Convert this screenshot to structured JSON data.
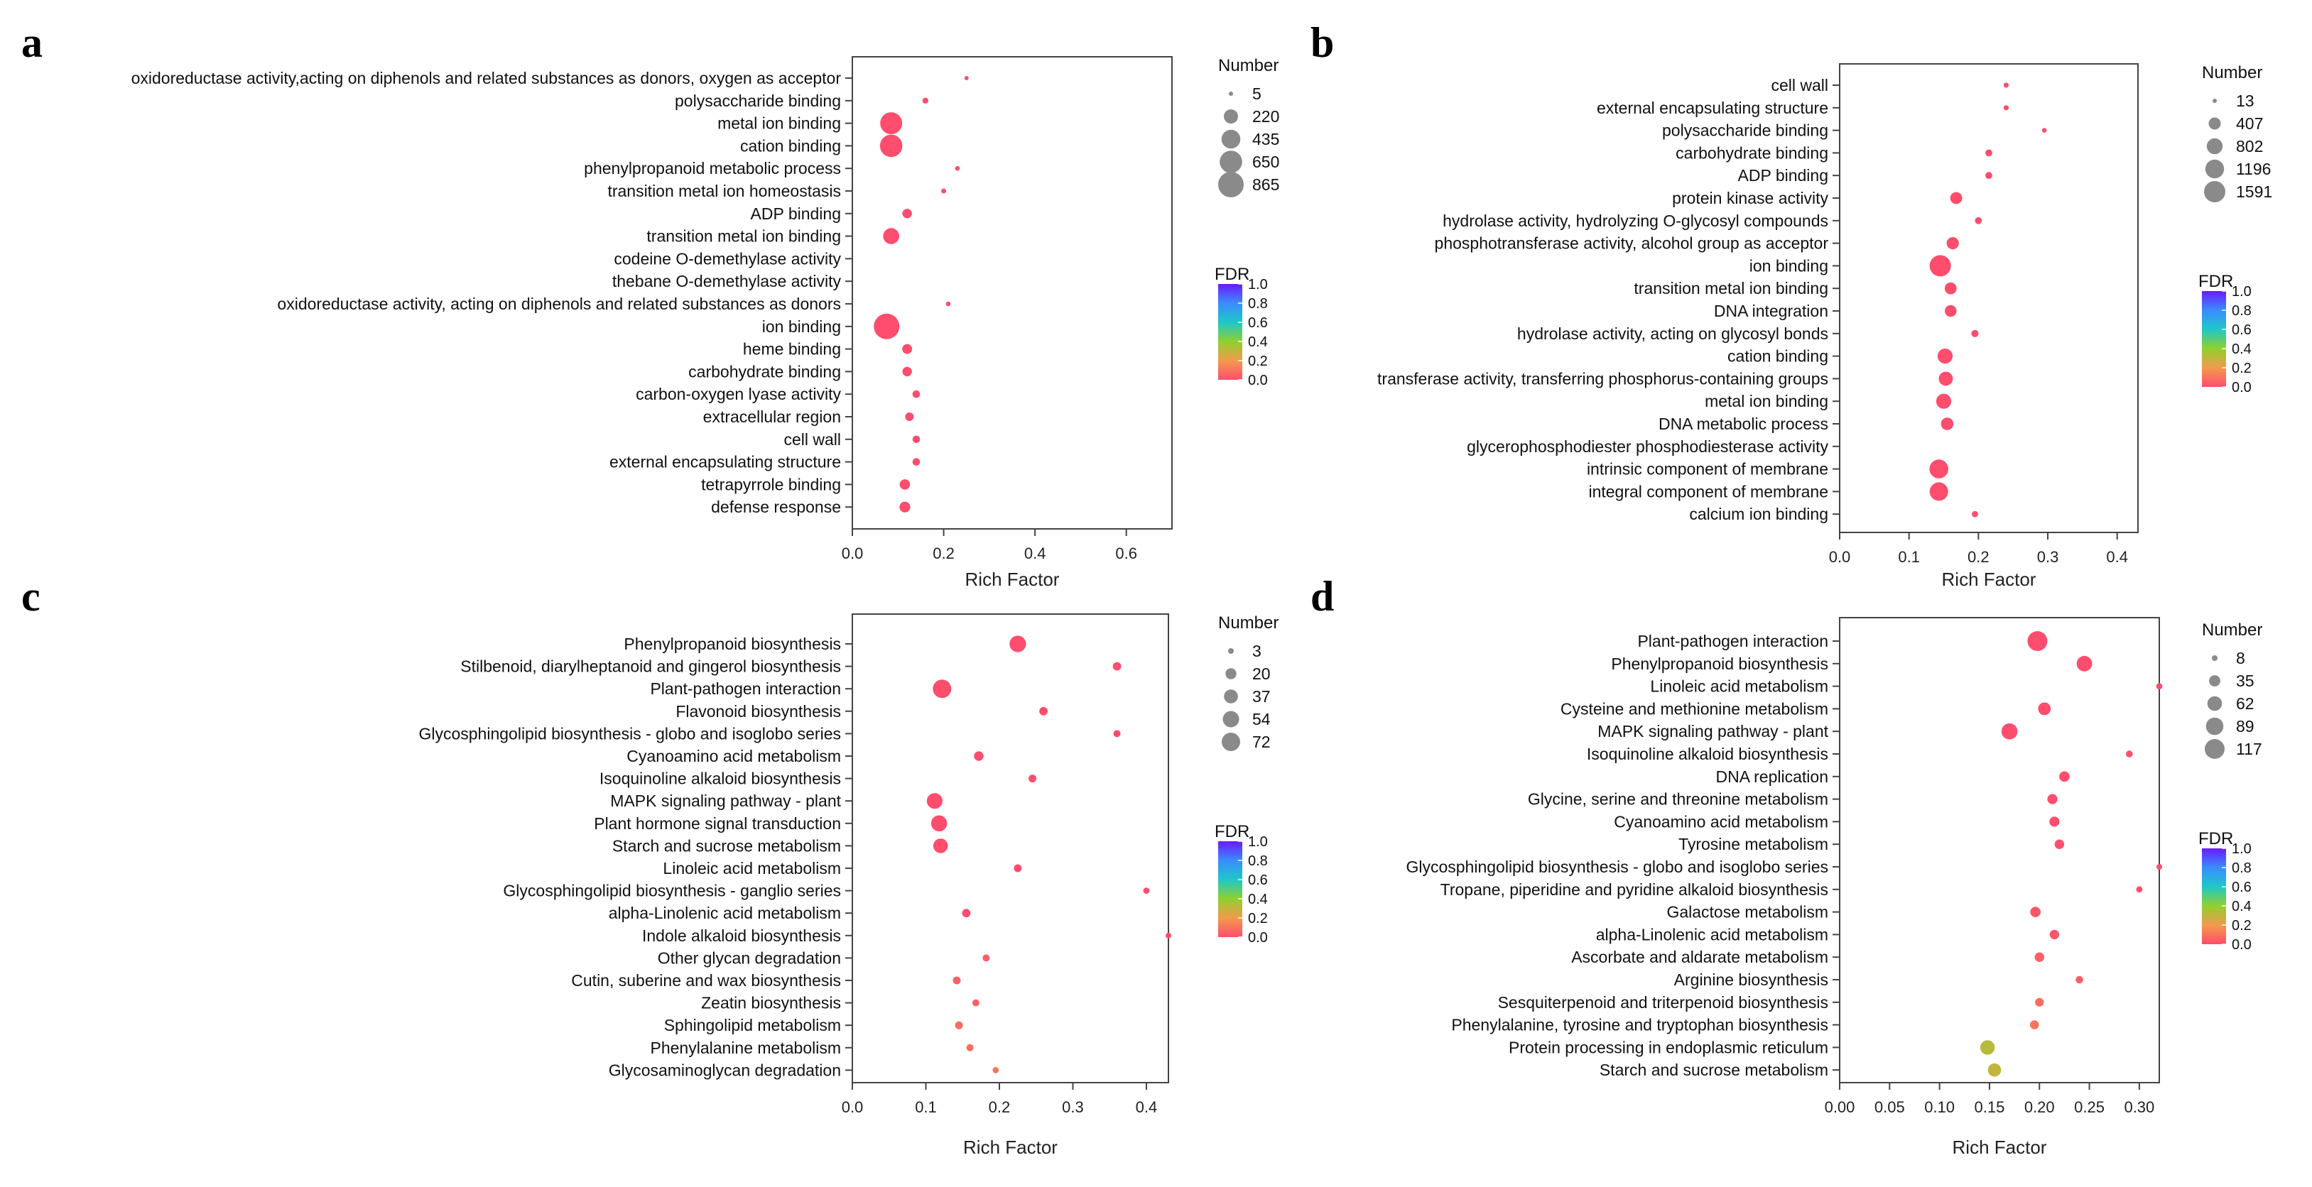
{
  "fdr_label": "FDR",
  "number_label": "Number",
  "colors": {
    "low": "#ff4d6d",
    "mid_low": "#f39a4c",
    "mid": "#8fd02e",
    "mid_high": "#1ec8c8",
    "high": "#6a1aff"
  },
  "chart_data": [
    {
      "panel": "a",
      "type": "scatter",
      "xlabel": "Rich Factor",
      "xlim": [
        0,
        0.7
      ],
      "xticks": [
        0.0,
        0.2,
        0.4,
        0.6
      ],
      "xtick_labels": [
        "0.0",
        "0.2",
        "0.4",
        "0.6"
      ],
      "size_legend": {
        "title": "Number",
        "values": [
          5,
          220,
          435,
          650,
          865
        ],
        "labels": [
          "5",
          "220",
          "435",
          "650",
          "865"
        ]
      },
      "color_legend": {
        "title": "FDR",
        "ticks": [
          "1.0",
          "0.8",
          "0.6",
          "0.4",
          "0.2",
          "0.0"
        ],
        "range": [
          0,
          1
        ]
      },
      "points": [
        {
          "term": "oxidoreductase activity,acting on diphenols and related substances as donors, oxygen as acceptor",
          "rich": 0.25,
          "number": 5,
          "fdr": 0.0
        },
        {
          "term": "polysaccharide binding",
          "rich": 0.16,
          "number": 20,
          "fdr": 0.0
        },
        {
          "term": "metal ion binding",
          "rich": 0.085,
          "number": 620,
          "fdr": 0.0
        },
        {
          "term": "cation binding",
          "rich": 0.085,
          "number": 650,
          "fdr": 0.0
        },
        {
          "term": "phenylpropanoid metabolic process",
          "rich": 0.23,
          "number": 8,
          "fdr": 0.0
        },
        {
          "term": "transition metal ion homeostasis",
          "rich": 0.2,
          "number": 10,
          "fdr": 0.0
        },
        {
          "term": "ADP binding",
          "rich": 0.12,
          "number": 80,
          "fdr": 0.0
        },
        {
          "term": "transition metal ion binding",
          "rich": 0.085,
          "number": 300,
          "fdr": 0.0
        },
        {
          "term": "codeine O-demethylase activity",
          "rich": null,
          "number": null,
          "fdr": null
        },
        {
          "term": "thebane O-demethylase activity",
          "rich": null,
          "number": null,
          "fdr": null
        },
        {
          "term": "oxidoreductase activity, acting on diphenols and related substances as donors",
          "rich": 0.21,
          "number": 8,
          "fdr": 0.0
        },
        {
          "term": "ion binding",
          "rich": 0.075,
          "number": 865,
          "fdr": 0.0
        },
        {
          "term": "heme binding",
          "rich": 0.12,
          "number": 90,
          "fdr": 0.0
        },
        {
          "term": "carbohydrate binding",
          "rich": 0.12,
          "number": 80,
          "fdr": 0.0
        },
        {
          "term": "carbon-oxygen lyase activity",
          "rich": 0.14,
          "number": 40,
          "fdr": 0.0
        },
        {
          "term": "extracellular region",
          "rich": 0.125,
          "number": 60,
          "fdr": 0.0
        },
        {
          "term": "cell wall",
          "rich": 0.14,
          "number": 40,
          "fdr": 0.0
        },
        {
          "term": "external encapsulating structure",
          "rich": 0.14,
          "number": 40,
          "fdr": 0.0
        },
        {
          "term": "tetrapyrrole binding",
          "rich": 0.115,
          "number": 100,
          "fdr": 0.0
        },
        {
          "term": "defense response",
          "rich": 0.115,
          "number": 110,
          "fdr": 0.0
        }
      ]
    },
    {
      "panel": "b",
      "type": "scatter",
      "xlabel": "Rich Factor",
      "xlim": [
        0,
        0.43
      ],
      "xticks": [
        0.0,
        0.1,
        0.2,
        0.3,
        0.4
      ],
      "xtick_labels": [
        "0.0",
        "0.1",
        "0.2",
        "0.3",
        "0.4"
      ],
      "size_legend": {
        "title": "Number",
        "values": [
          13,
          407,
          802,
          1196,
          1591
        ],
        "labels": [
          "13",
          "407",
          "802",
          "1196",
          "1591"
        ]
      },
      "color_legend": {
        "title": "FDR",
        "ticks": [
          "1.0",
          "0.8",
          "0.6",
          "0.4",
          "0.2",
          "0.0"
        ],
        "range": [
          0,
          1
        ]
      },
      "points": [
        {
          "term": "cell wall",
          "rich": 0.24,
          "number": 30,
          "fdr": 0.0
        },
        {
          "term": "external encapsulating structure",
          "rich": 0.24,
          "number": 30,
          "fdr": 0.0
        },
        {
          "term": "polysaccharide binding",
          "rich": 0.295,
          "number": 20,
          "fdr": 0.0
        },
        {
          "term": "carbohydrate binding",
          "rich": 0.215,
          "number": 90,
          "fdr": 0.0
        },
        {
          "term": "ADP binding",
          "rich": 0.215,
          "number": 90,
          "fdr": 0.0
        },
        {
          "term": "protein kinase activity",
          "rich": 0.168,
          "number": 400,
          "fdr": 0.0
        },
        {
          "term": "hydrolase activity, hydrolyzing O-glycosyl compounds",
          "rich": 0.2,
          "number": 90,
          "fdr": 0.0
        },
        {
          "term": "phosphotransferase activity, alcohol group as acceptor",
          "rich": 0.163,
          "number": 420,
          "fdr": 0.0
        },
        {
          "term": "ion binding",
          "rich": 0.145,
          "number": 1591,
          "fdr": 0.0
        },
        {
          "term": "transition metal ion binding",
          "rich": 0.16,
          "number": 400,
          "fdr": 0.0
        },
        {
          "term": "DNA integration",
          "rich": 0.16,
          "number": 380,
          "fdr": 0.0
        },
        {
          "term": "hydrolase activity, acting on glycosyl bonds",
          "rich": 0.195,
          "number": 100,
          "fdr": 0.0
        },
        {
          "term": "cation binding",
          "rich": 0.152,
          "number": 700,
          "fdr": 0.0
        },
        {
          "term": "transferase activity, transferring phosphorus-containing groups",
          "rich": 0.153,
          "number": 600,
          "fdr": 0.0
        },
        {
          "term": "metal ion binding",
          "rich": 0.15,
          "number": 700,
          "fdr": 0.0
        },
        {
          "term": "DNA metabolic process",
          "rich": 0.155,
          "number": 450,
          "fdr": 0.0
        },
        {
          "term": "glycerophosphodiester phosphodiesterase activity",
          "rich": null,
          "number": null,
          "fdr": null
        },
        {
          "term": "intrinsic component of membrane",
          "rich": 0.143,
          "number": 1200,
          "fdr": 0.0
        },
        {
          "term": "integral component of membrane",
          "rich": 0.143,
          "number": 1150,
          "fdr": 0.0
        },
        {
          "term": "calcium ion binding",
          "rich": 0.195,
          "number": 60,
          "fdr": 0.0
        }
      ]
    },
    {
      "panel": "c",
      "type": "scatter",
      "xlabel": "Rich Factor",
      "xlim": [
        0,
        0.43
      ],
      "xticks": [
        0.0,
        0.1,
        0.2,
        0.3,
        0.4
      ],
      "xtick_labels": [
        "0.0",
        "0.1",
        "0.2",
        "0.3",
        "0.4"
      ],
      "size_legend": {
        "title": "Number",
        "values": [
          3,
          20,
          37,
          54,
          72
        ],
        "labels": [
          "3",
          "20",
          "37",
          "54",
          "72"
        ]
      },
      "color_legend": {
        "title": "FDR",
        "ticks": [
          "1.0",
          "0.8",
          "0.6",
          "0.4",
          "0.2",
          "0.0"
        ],
        "range": [
          0,
          1
        ]
      },
      "points": [
        {
          "term": "Phenylpropanoid biosynthesis",
          "rich": 0.225,
          "number": 55,
          "fdr": 0.0
        },
        {
          "term": "Stilbenoid, diarylheptanoid and gingerol biosynthesis",
          "rich": 0.36,
          "number": 10,
          "fdr": 0.0
        },
        {
          "term": "Plant-pathogen interaction",
          "rich": 0.122,
          "number": 72,
          "fdr": 0.0
        },
        {
          "term": "Flavonoid biosynthesis",
          "rich": 0.26,
          "number": 10,
          "fdr": 0.0
        },
        {
          "term": "Glycosphingolipid biosynthesis - globo and isoglobo series",
          "rich": 0.36,
          "number": 6,
          "fdr": 0.0
        },
        {
          "term": "Cyanoamino acid metabolism",
          "rich": 0.172,
          "number": 14,
          "fdr": 0.0
        },
        {
          "term": "Isoquinoline alkaloid biosynthesis",
          "rich": 0.245,
          "number": 8,
          "fdr": 0.0
        },
        {
          "term": "MAPK signaling pathway - plant",
          "rich": 0.112,
          "number": 50,
          "fdr": 0.0
        },
        {
          "term": "Plant hormone signal transduction",
          "rich": 0.118,
          "number": 52,
          "fdr": 0.0
        },
        {
          "term": "Starch and sucrose metabolism",
          "rich": 0.12,
          "number": 42,
          "fdr": 0.0
        },
        {
          "term": "Linoleic acid metabolism",
          "rich": 0.225,
          "number": 8,
          "fdr": 0.0
        },
        {
          "term": "Glycosphingolipid biosynthesis - ganglio series",
          "rich": 0.4,
          "number": 4,
          "fdr": 0.0
        },
        {
          "term": "alpha-Linolenic acid metabolism",
          "rich": 0.155,
          "number": 10,
          "fdr": 0.0
        },
        {
          "term": "Indole alkaloid biosynthesis",
          "rich": 0.43,
          "number": 3,
          "fdr": 0.0
        },
        {
          "term": "Other glycan degradation",
          "rich": 0.182,
          "number": 6,
          "fdr": 0.05
        },
        {
          "term": "Cutin, suberine and wax biosynthesis",
          "rich": 0.142,
          "number": 8,
          "fdr": 0.05
        },
        {
          "term": "Zeatin biosynthesis",
          "rich": 0.168,
          "number": 6,
          "fdr": 0.05
        },
        {
          "term": "Sphingolipid metabolism",
          "rich": 0.145,
          "number": 8,
          "fdr": 0.08
        },
        {
          "term": "Phenylalanine metabolism",
          "rich": 0.16,
          "number": 6,
          "fdr": 0.08
        },
        {
          "term": "Glycosaminoglycan degradation",
          "rich": 0.195,
          "number": 4,
          "fdr": 0.1
        }
      ]
    },
    {
      "panel": "d",
      "type": "scatter",
      "xlabel": "Rich Factor",
      "xlim": [
        0,
        0.32
      ],
      "xticks": [
        0.0,
        0.05,
        0.1,
        0.15,
        0.2,
        0.25,
        0.3
      ],
      "xtick_labels": [
        "0.00",
        "0.05",
        "0.10",
        "0.15",
        "0.20",
        "0.25",
        "0.30"
      ],
      "size_legend": {
        "title": "Number",
        "values": [
          8,
          35,
          62,
          89,
          117
        ],
        "labels": [
          "8",
          "35",
          "62",
          "89",
          "117"
        ]
      },
      "color_legend": {
        "title": "FDR",
        "ticks": [
          "1.0",
          "0.8",
          "0.6",
          "0.4",
          "0.2",
          "0.0"
        ],
        "range": [
          0,
          1
        ]
      },
      "points": [
        {
          "term": "Plant-pathogen interaction",
          "rich": 0.198,
          "number": 117,
          "fdr": 0.0
        },
        {
          "term": "Phenylpropanoid biosynthesis",
          "rich": 0.245,
          "number": 70,
          "fdr": 0.0
        },
        {
          "term": "Linoleic acid metabolism",
          "rich": 0.32,
          "number": 10,
          "fdr": 0.0
        },
        {
          "term": "Cysteine and methionine metabolism",
          "rich": 0.205,
          "number": 45,
          "fdr": 0.0
        },
        {
          "term": "MAPK signaling pathway - plant",
          "rich": 0.17,
          "number": 75,
          "fdr": 0.0
        },
        {
          "term": "Isoquinoline alkaloid biosynthesis",
          "rich": 0.29,
          "number": 12,
          "fdr": 0.0
        },
        {
          "term": "DNA replication",
          "rich": 0.225,
          "number": 30,
          "fdr": 0.0
        },
        {
          "term": "Glycine, serine and threonine metabolism",
          "rich": 0.213,
          "number": 28,
          "fdr": 0.0
        },
        {
          "term": "Cyanoamino acid metabolism",
          "rich": 0.215,
          "number": 28,
          "fdr": 0.0
        },
        {
          "term": "Tyrosine metabolism",
          "rich": 0.22,
          "number": 25,
          "fdr": 0.0
        },
        {
          "term": "Glycosphingolipid biosynthesis - globo and isoglobo series",
          "rich": 0.32,
          "number": 8,
          "fdr": 0.0
        },
        {
          "term": "Tropane, piperidine and pyridine alkaloid biosynthesis",
          "rich": 0.3,
          "number": 10,
          "fdr": 0.0
        },
        {
          "term": "Galactose metabolism",
          "rich": 0.196,
          "number": 30,
          "fdr": 0.02
        },
        {
          "term": "alpha-Linolenic acid metabolism",
          "rich": 0.215,
          "number": 25,
          "fdr": 0.02
        },
        {
          "term": "Ascorbate and aldarate metabolism",
          "rich": 0.2,
          "number": 25,
          "fdr": 0.05
        },
        {
          "term": "Arginine biosynthesis",
          "rich": 0.24,
          "number": 15,
          "fdr": 0.05
        },
        {
          "term": "Sesquiterpenoid and triterpenoid biosynthesis",
          "rich": 0.2,
          "number": 20,
          "fdr": 0.08
        },
        {
          "term": "Phenylalanine, tyrosine and tryptophan biosynthesis",
          "rich": 0.195,
          "number": 22,
          "fdr": 0.1
        },
        {
          "term": "Protein processing in endoplasmic reticulum",
          "rich": 0.148,
          "number": 60,
          "fdr": 0.32
        },
        {
          "term": "Starch and sucrose metabolism",
          "rich": 0.155,
          "number": 50,
          "fdr": 0.3
        }
      ]
    }
  ]
}
